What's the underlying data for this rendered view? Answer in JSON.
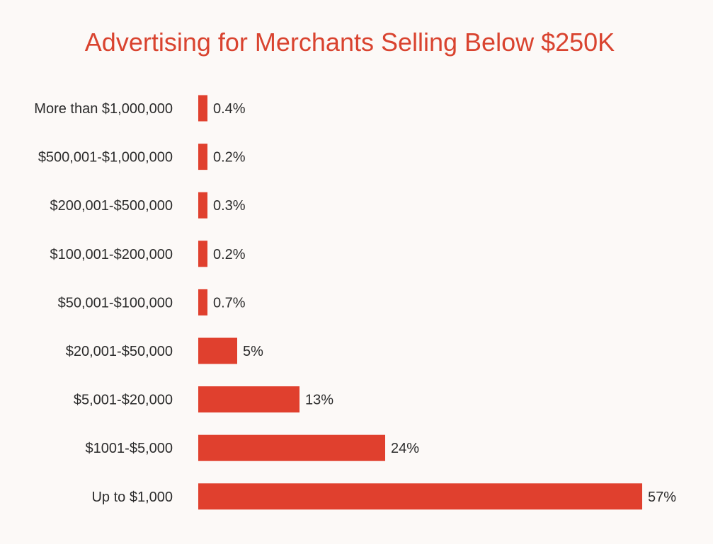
{
  "colors": {
    "bar": "#e0402e",
    "title": "#d9432f",
    "background": "#fcf9f7"
  },
  "chart_data": {
    "type": "bar",
    "orientation": "horizontal",
    "title": "Advertising for Merchants Selling Below $250K",
    "xlabel": "",
    "ylabel": "",
    "grid": false,
    "legend": "none",
    "categories": [
      "More than $1,000,000",
      "$500,001-$1,000,000",
      "$200,001-$500,000",
      "$100,001-$200,000",
      "$50,001-$100,000",
      "$20,001-$50,000",
      "$5,001-$20,000",
      "$1001-$5,000",
      "Up to $1,000"
    ],
    "values": [
      0.4,
      0.2,
      0.3,
      0.2,
      0.7,
      5,
      13,
      24,
      57
    ],
    "value_labels": [
      "0.4%",
      "0.2%",
      "0.3%",
      "0.2%",
      "0.7%",
      "5%",
      "13%",
      "24%",
      "57%"
    ],
    "xlim": [
      0,
      57
    ]
  }
}
